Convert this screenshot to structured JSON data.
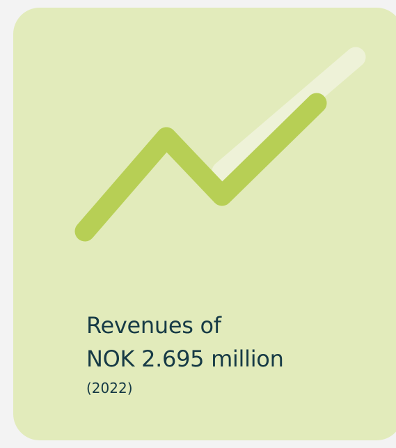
{
  "card": {
    "background_color": "#e2ebbb",
    "icon": "trend-up-icon",
    "icon_colors": {
      "line": "#b7cf55",
      "highlight": "#eef2d8"
    },
    "headline_line1": "Revenues of",
    "headline_line2": "NOK 2.695 million",
    "year": "(2022)",
    "text_color": "#163a45"
  }
}
